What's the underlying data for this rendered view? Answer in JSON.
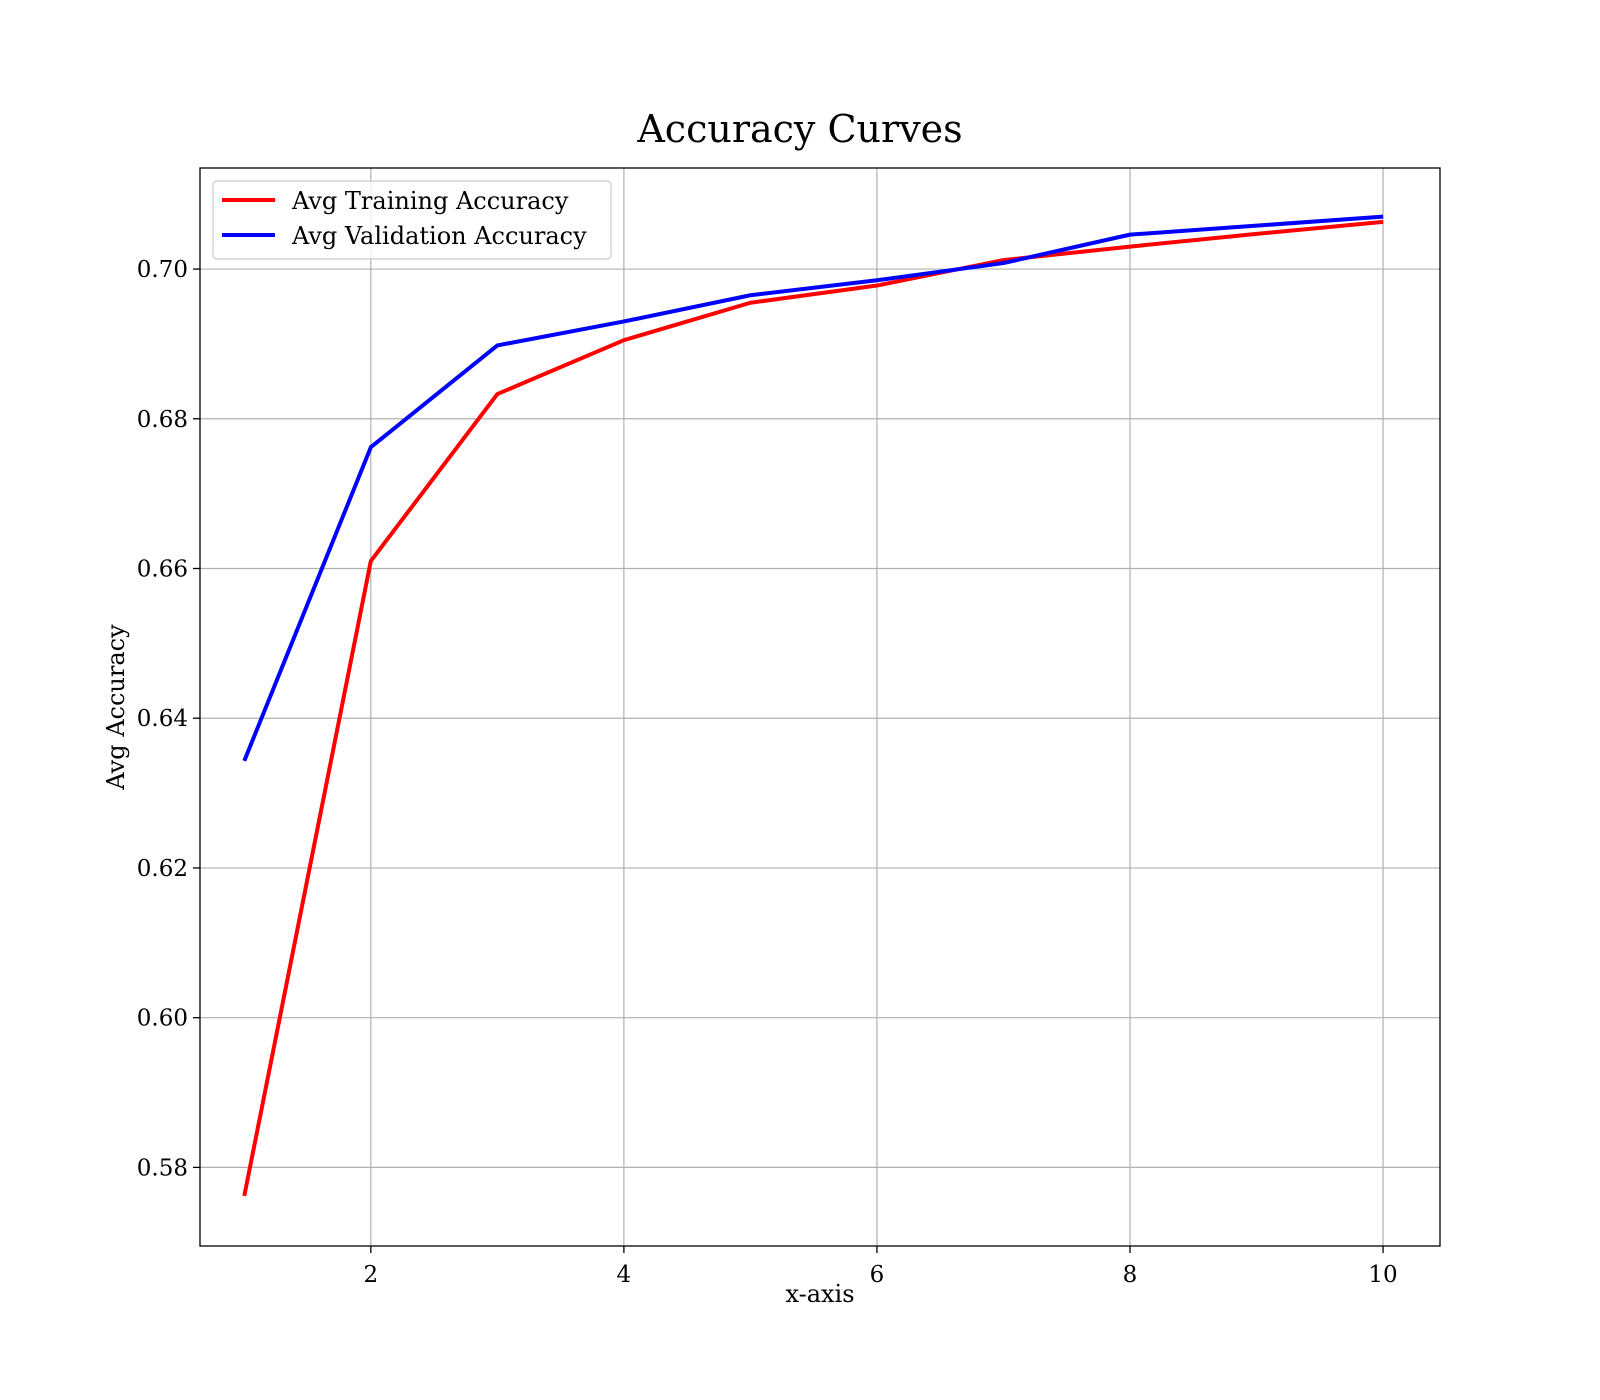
{
  "chart_data": {
    "type": "line",
    "title": "Accuracy Curves",
    "xlabel": "x-axis",
    "ylabel": "Avg Accuracy",
    "xlim": [
      0.65,
      10.45
    ],
    "ylim": [
      0.5695,
      0.7135
    ],
    "xticks": [
      2,
      4,
      6,
      8,
      10
    ],
    "xtick_labels": [
      "2",
      "4",
      "6",
      "8",
      "10"
    ],
    "yticks": [
      0.58,
      0.6,
      0.62,
      0.64,
      0.66,
      0.68,
      0.7
    ],
    "ytick_labels": [
      "0.58",
      "0.60",
      "0.62",
      "0.64",
      "0.66",
      "0.68",
      "0.70"
    ],
    "grid": true,
    "legend_position": "top-left",
    "x": [
      1,
      2,
      3,
      4,
      5,
      6,
      7,
      8,
      9,
      10
    ],
    "series": [
      {
        "name": "Avg Training Accuracy",
        "color": "#ff0000",
        "values": [
          0.5762,
          0.661,
          0.6833,
          0.6905,
          0.6955,
          0.6978,
          0.7012,
          0.703,
          0.7047,
          0.7063
        ]
      },
      {
        "name": "Avg Validation Accuracy",
        "color": "#0000ff",
        "values": [
          0.6343,
          0.6762,
          0.6898,
          0.693,
          0.6965,
          0.6985,
          0.7008,
          0.7046,
          0.7058,
          0.707
        ]
      }
    ]
  }
}
